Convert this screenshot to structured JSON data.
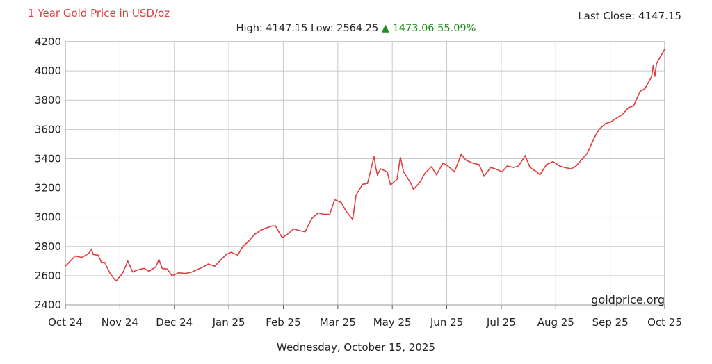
{
  "header": {
    "title": "1 Year Gold Price in USD/oz",
    "last_close": "Last Close: 4147.15",
    "stats_prefix": "High: 4147.15 Low: 2564.25",
    "up_arrow": "▲",
    "change": "1473.06 55.09%"
  },
  "footer": {
    "date": "Wednesday, October 15, 2025"
  },
  "colors": {
    "line": "#e23b3b",
    "grid": "#c9c9c9",
    "up": "#1a8f1a"
  },
  "chart_data": {
    "type": "line",
    "title": "1 Year Gold Price in USD/oz",
    "xlabel": "",
    "ylabel": "",
    "ylim": [
      2400,
      4200
    ],
    "xlim": [
      "2024-10-15",
      "2025-10-15"
    ],
    "grid": true,
    "credit": "goldprice.org",
    "x_ticks": [
      "Oct 24",
      "Nov 24",
      "Dec 24",
      "Jan 25",
      "Feb 25",
      "Mar 25",
      "May 25",
      "Jun 25",
      "Jul 25",
      "Aug 25",
      "Sep 25",
      "Oct 25"
    ],
    "y_ticks": [
      2400,
      2600,
      2800,
      3000,
      3200,
      3400,
      3600,
      3800,
      4000,
      4200
    ],
    "series": [
      {
        "x": [
          "2024-10-15",
          "2024-10-18",
          "2024-10-21",
          "2024-10-25",
          "2024-10-29",
          "2024-10-31",
          "2024-11-01",
          "2024-11-04",
          "2024-11-06",
          "2024-11-08",
          "2024-11-11",
          "2024-11-14",
          "2024-11-15",
          "2024-11-19",
          "2024-11-22",
          "2024-11-25",
          "2024-11-28",
          "2024-12-02",
          "2024-12-05",
          "2024-12-09",
          "2024-12-11",
          "2024-12-13",
          "2024-12-16",
          "2024-12-19",
          "2024-12-23",
          "2024-12-27",
          "2024-12-31",
          "2025-01-03",
          "2025-01-07",
          "2025-01-10",
          "2025-01-14",
          "2025-01-17",
          "2025-01-21",
          "2025-01-24",
          "2025-01-28",
          "2025-01-31",
          "2025-02-04",
          "2025-02-07",
          "2025-02-11",
          "2025-02-14",
          "2025-02-18",
          "2025-02-20",
          "2025-02-24",
          "2025-02-27",
          "2025-03-03",
          "2025-03-06",
          "2025-03-10",
          "2025-03-14",
          "2025-03-18",
          "2025-03-21",
          "2025-03-25",
          "2025-03-28",
          "2025-04-01",
          "2025-04-04",
          "2025-04-08",
          "2025-04-10",
          "2025-04-14",
          "2025-04-17",
          "2025-04-21",
          "2025-04-22",
          "2025-04-23",
          "2025-04-25",
          "2025-04-29",
          "2025-05-01",
          "2025-05-05",
          "2025-05-07",
          "2025-05-09",
          "2025-05-13",
          "2025-05-15",
          "2025-05-19",
          "2025-05-22",
          "2025-05-26",
          "2025-05-29",
          "2025-06-02",
          "2025-06-05",
          "2025-06-09",
          "2025-06-13",
          "2025-06-16",
          "2025-06-20",
          "2025-06-24",
          "2025-06-27",
          "2025-07-01",
          "2025-07-04",
          "2025-07-08",
          "2025-07-11",
          "2025-07-15",
          "2025-07-18",
          "2025-07-22",
          "2025-07-25",
          "2025-07-29",
          "2025-07-31",
          "2025-08-04",
          "2025-08-08",
          "2025-08-12",
          "2025-08-15",
          "2025-08-19",
          "2025-08-22",
          "2025-08-26",
          "2025-08-29",
          "2025-09-02",
          "2025-09-05",
          "2025-09-09",
          "2025-09-12",
          "2025-09-16",
          "2025-09-19",
          "2025-09-23",
          "2025-09-26",
          "2025-09-30",
          "2025-10-03",
          "2025-10-07",
          "2025-10-08",
          "2025-10-09",
          "2025-10-10",
          "2025-10-13",
          "2025-10-15"
        ],
        "values": [
          2665,
          2700,
          2735,
          2725,
          2750,
          2780,
          2745,
          2740,
          2690,
          2690,
          2620,
          2575,
          2565,
          2620,
          2700,
          2625,
          2640,
          2650,
          2630,
          2660,
          2710,
          2650,
          2645,
          2600,
          2620,
          2615,
          2625,
          2640,
          2660,
          2680,
          2665,
          2700,
          2745,
          2760,
          2740,
          2800,
          2840,
          2880,
          2910,
          2925,
          2940,
          2940,
          2860,
          2880,
          2920,
          2910,
          2900,
          2990,
          3030,
          3020,
          3020,
          3120,
          3100,
          3040,
          2985,
          3150,
          3225,
          3230,
          3415,
          3340,
          3290,
          3330,
          3310,
          3220,
          3260,
          3410,
          3310,
          3240,
          3190,
          3240,
          3300,
          3345,
          3290,
          3370,
          3350,
          3310,
          3430,
          3390,
          3370,
          3360,
          3280,
          3340,
          3330,
          3310,
          3350,
          3340,
          3350,
          3420,
          3340,
          3310,
          3290,
          3360,
          3380,
          3350,
          3340,
          3330,
          3350,
          3400,
          3440,
          3540,
          3600,
          3640,
          3650,
          3680,
          3700,
          3750,
          3760,
          3860,
          3880,
          3960,
          4040,
          3960,
          4050,
          4110,
          4147.15
        ]
      }
    ]
  }
}
